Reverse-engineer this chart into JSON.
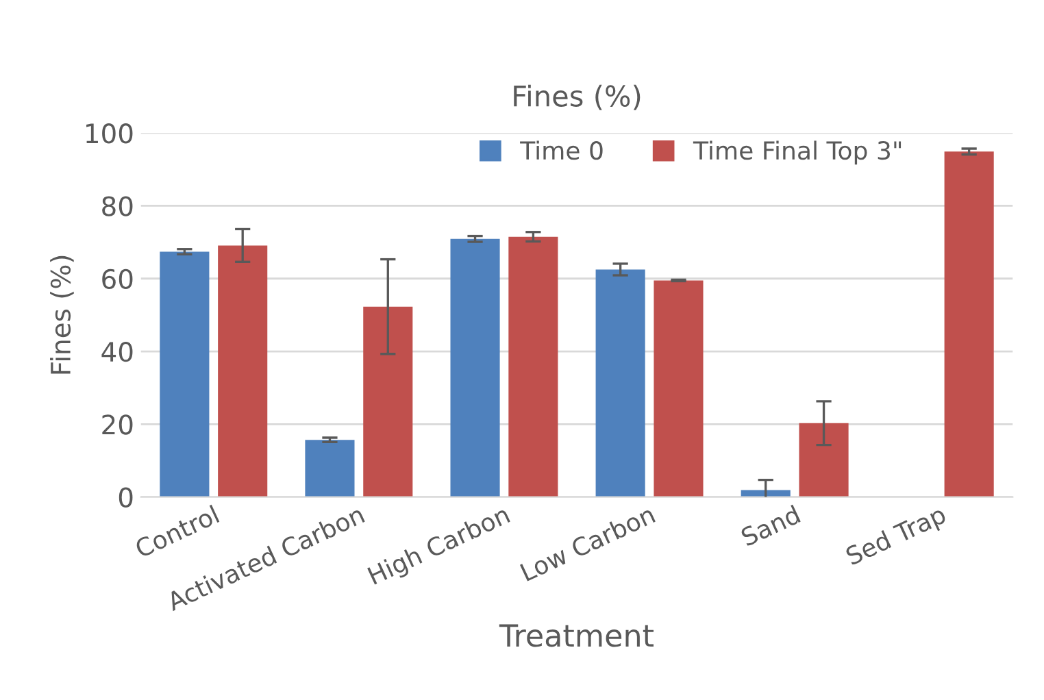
{
  "chart_data": {
    "type": "bar",
    "title": "Fines (%)",
    "xlabel": "Treatment",
    "ylabel": "Fines (%)",
    "categories": [
      "Control",
      "Activated Carbon",
      "High Carbon",
      "Low Carbon",
      "Sand",
      "Sed Trap"
    ],
    "series": [
      {
        "name": "Time 0",
        "color": "#4f81bd",
        "values": [
          67.4,
          15.7,
          70.9,
          62.5,
          1.9,
          null
        ],
        "errors": [
          0.7,
          0.6,
          0.8,
          1.6,
          2.8,
          null
        ]
      },
      {
        "name": "Time Final Top 3\"",
        "color": "#c0504d",
        "values": [
          69.1,
          52.3,
          71.5,
          59.5,
          20.3,
          94.9
        ],
        "errors": [
          4.5,
          13,
          1.3,
          0.2,
          6,
          0.8
        ]
      }
    ],
    "ylim": [
      0,
      100
    ],
    "yticks": [
      0,
      20,
      40,
      60,
      80,
      100
    ],
    "grid": "y",
    "legend": "top right"
  }
}
